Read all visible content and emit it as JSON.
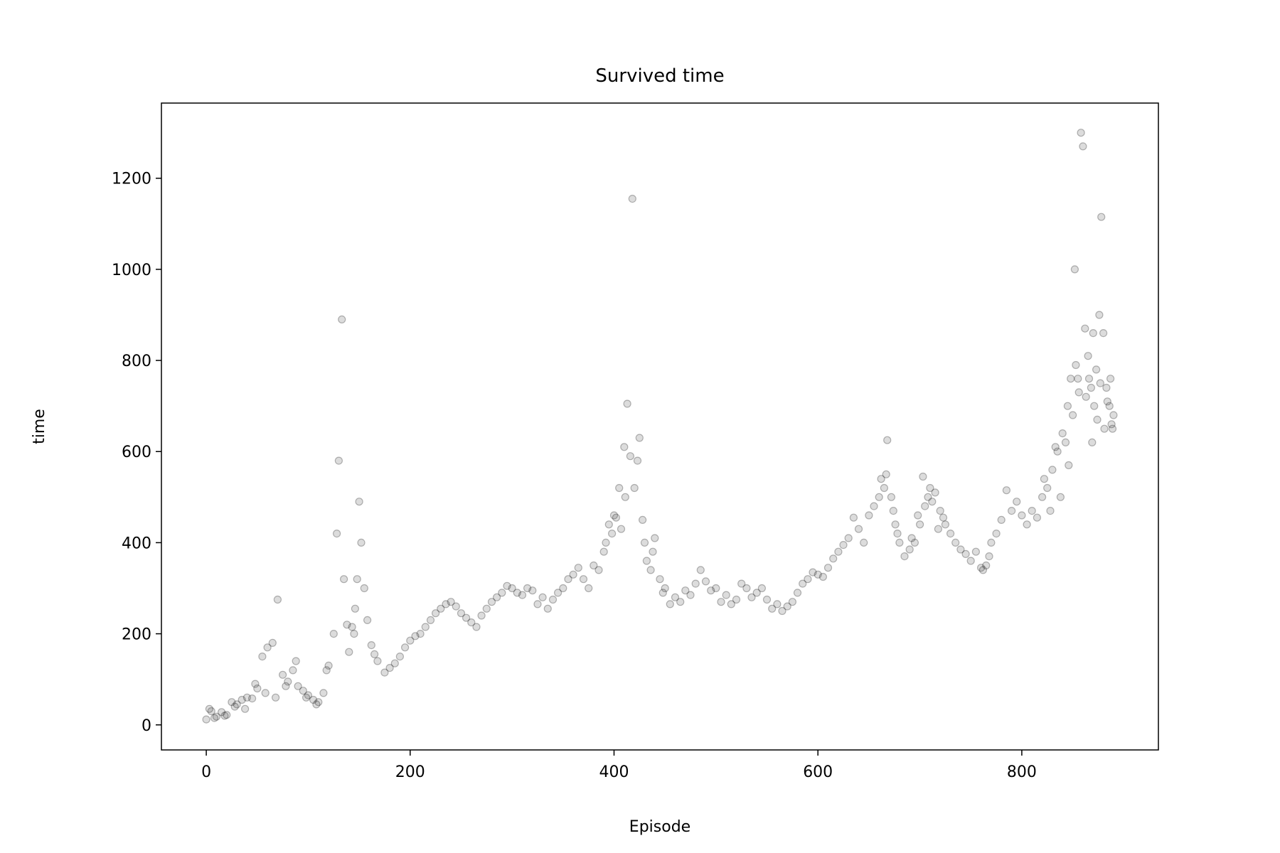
{
  "chart_data": {
    "type": "scatter",
    "title": "Survived time",
    "xlabel": "Episode",
    "ylabel": "time",
    "xlim": [
      -44,
      934
    ],
    "ylim": [
      -55,
      1365
    ],
    "xticks": [
      0,
      200,
      400,
      600,
      800
    ],
    "yticks": [
      0,
      200,
      400,
      600,
      800,
      1000,
      1200
    ],
    "grid": false,
    "legend": "none",
    "marker_color": "#3c3c3c",
    "series": [
      {
        "points": [
          [
            0,
            12
          ],
          [
            5,
            30
          ],
          [
            10,
            18
          ],
          [
            15,
            28
          ],
          [
            20,
            22
          ],
          [
            25,
            50
          ],
          [
            30,
            45
          ],
          [
            35,
            55
          ],
          [
            40,
            60
          ],
          [
            45,
            58
          ],
          [
            50,
            80
          ],
          [
            55,
            150
          ],
          [
            60,
            170
          ],
          [
            65,
            180
          ],
          [
            70,
            275
          ],
          [
            75,
            110
          ],
          [
            80,
            95
          ],
          [
            85,
            120
          ],
          [
            90,
            85
          ],
          [
            95,
            75
          ],
          [
            100,
            65
          ],
          [
            105,
            55
          ],
          [
            110,
            50
          ],
          [
            115,
            70
          ],
          [
            120,
            130
          ],
          [
            125,
            200
          ],
          [
            128,
            420
          ],
          [
            130,
            580
          ],
          [
            133,
            890
          ],
          [
            135,
            320
          ],
          [
            138,
            220
          ],
          [
            140,
            160
          ],
          [
            145,
            200
          ],
          [
            148,
            320
          ],
          [
            150,
            490
          ],
          [
            152,
            400
          ],
          [
            155,
            300
          ],
          [
            158,
            230
          ],
          [
            162,
            175
          ],
          [
            168,
            140
          ],
          [
            175,
            115
          ],
          [
            180,
            125
          ],
          [
            190,
            150
          ],
          [
            200,
            185
          ],
          [
            210,
            200
          ],
          [
            220,
            230
          ],
          [
            230,
            255
          ],
          [
            240,
            270
          ],
          [
            250,
            245
          ],
          [
            260,
            225
          ],
          [
            270,
            240
          ],
          [
            280,
            270
          ],
          [
            290,
            290
          ],
          [
            300,
            300
          ],
          [
            310,
            285
          ],
          [
            320,
            295
          ],
          [
            330,
            280
          ],
          [
            340,
            275
          ],
          [
            350,
            300
          ],
          [
            360,
            330
          ],
          [
            370,
            320
          ],
          [
            380,
            350
          ],
          [
            390,
            380
          ],
          [
            395,
            440
          ],
          [
            400,
            460
          ],
          [
            405,
            520
          ],
          [
            410,
            610
          ],
          [
            413,
            705
          ],
          [
            416,
            590
          ],
          [
            418,
            1155
          ],
          [
            420,
            520
          ],
          [
            425,
            630
          ],
          [
            428,
            450
          ],
          [
            432,
            360
          ],
          [
            436,
            340
          ],
          [
            440,
            410
          ],
          [
            445,
            320
          ],
          [
            450,
            300
          ],
          [
            460,
            280
          ],
          [
            470,
            295
          ],
          [
            480,
            310
          ],
          [
            490,
            315
          ],
          [
            500,
            300
          ],
          [
            510,
            285
          ],
          [
            520,
            275
          ],
          [
            530,
            300
          ],
          [
            540,
            290
          ],
          [
            550,
            275
          ],
          [
            560,
            265
          ],
          [
            570,
            260
          ],
          [
            580,
            290
          ],
          [
            590,
            320
          ],
          [
            600,
            330
          ],
          [
            610,
            345
          ],
          [
            620,
            380
          ],
          [
            630,
            410
          ],
          [
            640,
            430
          ],
          [
            650,
            460
          ],
          [
            660,
            500
          ],
          [
            665,
            520
          ],
          [
            668,
            625
          ],
          [
            672,
            500
          ],
          [
            676,
            440
          ],
          [
            680,
            400
          ],
          [
            690,
            385
          ],
          [
            695,
            400
          ],
          [
            700,
            440
          ],
          [
            705,
            480
          ],
          [
            710,
            520
          ],
          [
            715,
            510
          ],
          [
            720,
            470
          ],
          [
            725,
            440
          ],
          [
            730,
            420
          ],
          [
            740,
            385
          ],
          [
            750,
            360
          ],
          [
            760,
            345
          ],
          [
            765,
            350
          ],
          [
            770,
            400
          ],
          [
            780,
            450
          ],
          [
            790,
            470
          ],
          [
            800,
            460
          ],
          [
            810,
            470
          ],
          [
            820,
            500
          ],
          [
            825,
            520
          ],
          [
            830,
            560
          ],
          [
            835,
            600
          ],
          [
            840,
            640
          ],
          [
            845,
            700
          ],
          [
            848,
            760
          ],
          [
            852,
            1000
          ],
          [
            855,
            760
          ],
          [
            858,
            1300
          ],
          [
            860,
            1270
          ],
          [
            862,
            870
          ],
          [
            865,
            810
          ],
          [
            868,
            740
          ],
          [
            870,
            860
          ],
          [
            873,
            780
          ],
          [
            876,
            900
          ],
          [
            878,
            1115
          ],
          [
            880,
            860
          ],
          [
            883,
            740
          ],
          [
            886,
            700
          ],
          [
            888,
            660
          ],
          [
            890,
            680
          ],
          [
            3,
            35
          ],
          [
            8,
            15
          ],
          [
            18,
            20
          ],
          [
            28,
            40
          ],
          [
            38,
            35
          ],
          [
            48,
            90
          ],
          [
            58,
            70
          ],
          [
            68,
            60
          ],
          [
            78,
            85
          ],
          [
            88,
            140
          ],
          [
            98,
            60
          ],
          [
            108,
            45
          ],
          [
            118,
            120
          ],
          [
            143,
            215
          ],
          [
            146,
            255
          ],
          [
            165,
            155
          ],
          [
            185,
            135
          ],
          [
            195,
            170
          ],
          [
            205,
            195
          ],
          [
            215,
            215
          ],
          [
            225,
            245
          ],
          [
            235,
            265
          ],
          [
            245,
            260
          ],
          [
            255,
            235
          ],
          [
            265,
            215
          ],
          [
            275,
            255
          ],
          [
            285,
            280
          ],
          [
            295,
            305
          ],
          [
            305,
            290
          ],
          [
            315,
            300
          ],
          [
            325,
            265
          ],
          [
            335,
            255
          ],
          [
            345,
            290
          ],
          [
            355,
            320
          ],
          [
            365,
            345
          ],
          [
            375,
            300
          ],
          [
            385,
            340
          ],
          [
            392,
            400
          ],
          [
            398,
            420
          ],
          [
            402,
            455
          ],
          [
            407,
            430
          ],
          [
            411,
            500
          ],
          [
            423,
            580
          ],
          [
            430,
            400
          ],
          [
            438,
            380
          ],
          [
            448,
            290
          ],
          [
            455,
            265
          ],
          [
            465,
            270
          ],
          [
            475,
            285
          ],
          [
            485,
            340
          ],
          [
            495,
            295
          ],
          [
            505,
            270
          ],
          [
            515,
            265
          ],
          [
            525,
            310
          ],
          [
            535,
            280
          ],
          [
            545,
            300
          ],
          [
            555,
            255
          ],
          [
            565,
            250
          ],
          [
            575,
            270
          ],
          [
            585,
            310
          ],
          [
            595,
            335
          ],
          [
            605,
            325
          ],
          [
            615,
            365
          ],
          [
            625,
            395
          ],
          [
            635,
            455
          ],
          [
            645,
            400
          ],
          [
            655,
            480
          ],
          [
            662,
            540
          ],
          [
            667,
            550
          ],
          [
            674,
            470
          ],
          [
            678,
            420
          ],
          [
            685,
            370
          ],
          [
            692,
            410
          ],
          [
            698,
            460
          ],
          [
            703,
            545
          ],
          [
            708,
            500
          ],
          [
            712,
            490
          ],
          [
            718,
            430
          ],
          [
            723,
            455
          ],
          [
            735,
            400
          ],
          [
            745,
            375
          ],
          [
            755,
            380
          ],
          [
            762,
            340
          ],
          [
            768,
            370
          ],
          [
            775,
            420
          ],
          [
            785,
            515
          ],
          [
            795,
            490
          ],
          [
            805,
            440
          ],
          [
            815,
            455
          ],
          [
            822,
            540
          ],
          [
            828,
            470
          ],
          [
            833,
            610
          ],
          [
            838,
            500
          ],
          [
            843,
            620
          ],
          [
            846,
            570
          ],
          [
            850,
            680
          ],
          [
            853,
            790
          ],
          [
            856,
            730
          ],
          [
            863,
            720
          ],
          [
            866,
            760
          ],
          [
            869,
            620
          ],
          [
            871,
            700
          ],
          [
            874,
            670
          ],
          [
            877,
            750
          ],
          [
            881,
            650
          ],
          [
            884,
            710
          ],
          [
            887,
            760
          ],
          [
            889,
            650
          ]
        ]
      }
    ]
  }
}
